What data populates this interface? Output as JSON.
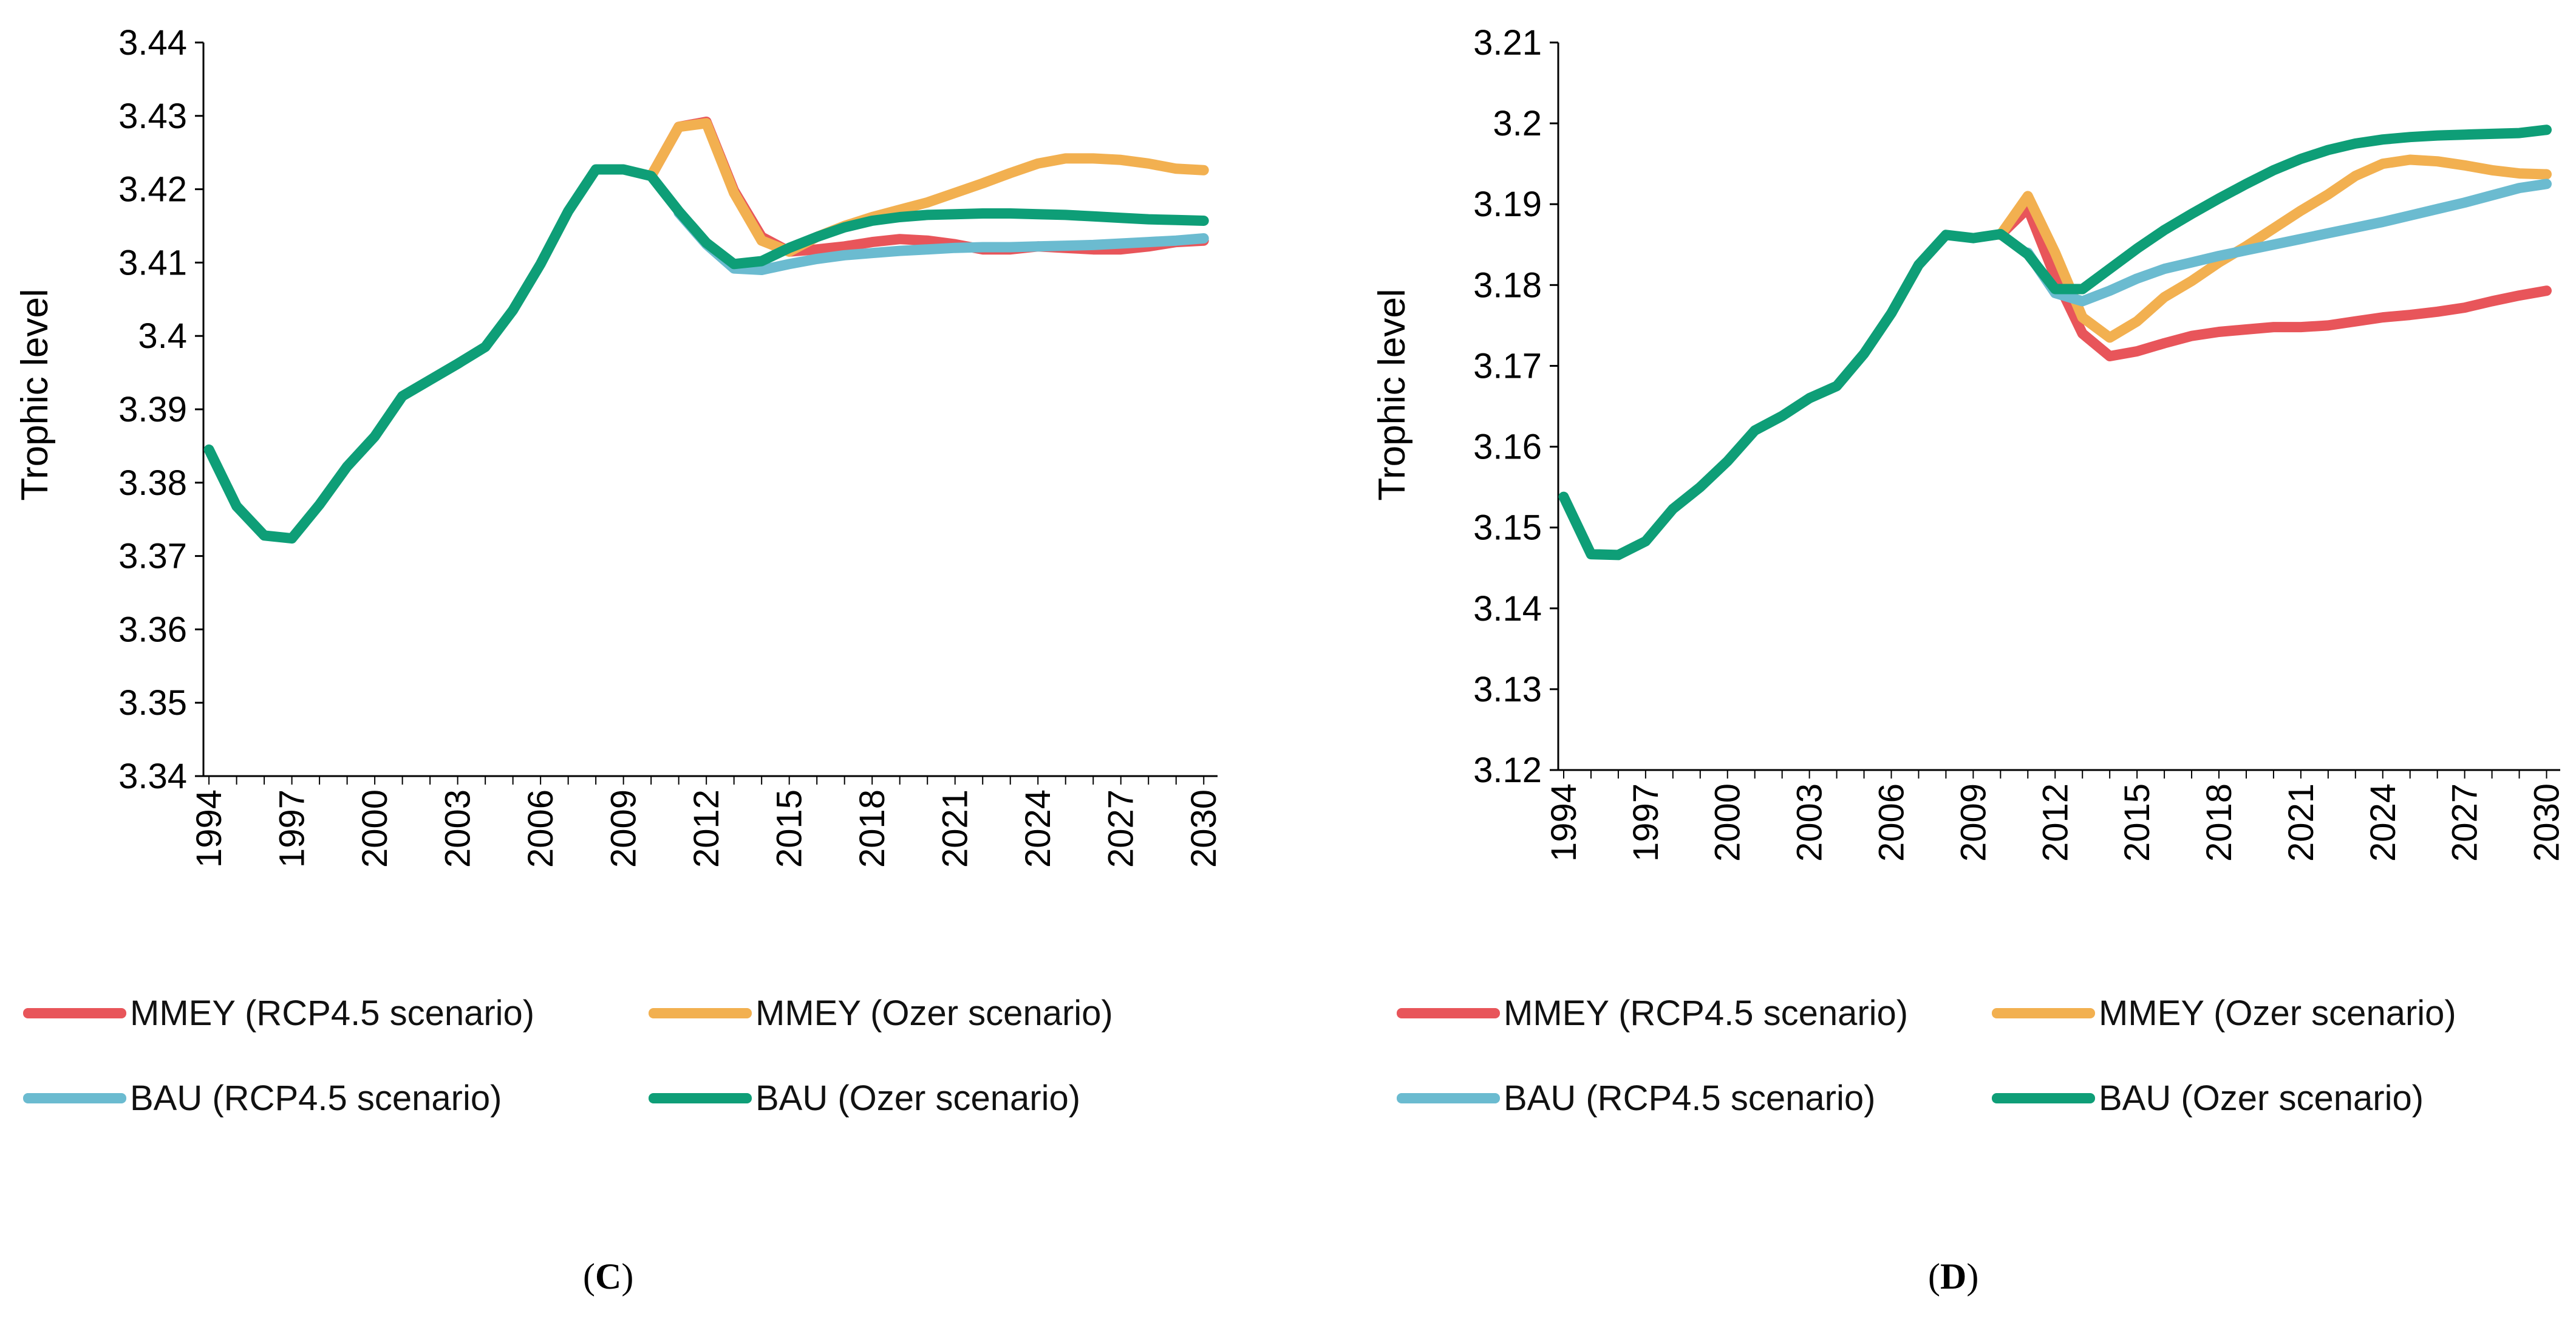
{
  "colors": {
    "mmey_rcp": "#E8555A",
    "mmey_ozer": "#F2B050",
    "bau_rcp": "#6BBBD0",
    "bau_ozer": "#0E9E77",
    "axis": "#000000"
  },
  "chart_data": [
    {
      "panel": "C",
      "type": "line",
      "title": "",
      "xlabel": "",
      "ylabel": "Trophic level",
      "ylim": [
        3.34,
        3.44
      ],
      "yticks": [
        "3.34",
        "3.35",
        "3.36",
        "3.37",
        "3.38",
        "3.39",
        "3.4",
        "3.41",
        "3.42",
        "3.43",
        "3.44"
      ],
      "xlim": [
        1993.8,
        2030.5
      ],
      "xticks": [
        "1994",
        "1997",
        "2000",
        "2003",
        "2006",
        "2009",
        "2012",
        "2015",
        "2018",
        "2021",
        "2024",
        "2027",
        "2030"
      ],
      "grid": false,
      "legend_position": "bottom",
      "series": [
        {
          "name": "MMEY (RCP4.5 scenario)",
          "color_key": "mmey_rcp",
          "x": [
            2010,
            2011,
            2012,
            2013,
            2014,
            2015,
            2016,
            2017,
            2018,
            2019,
            2020,
            2021,
            2022,
            2023,
            2024,
            2025,
            2026,
            2027,
            2028,
            2029,
            2030
          ],
          "values": [
            3.4218,
            3.4285,
            3.4292,
            3.4198,
            3.4135,
            3.4115,
            3.4118,
            3.4122,
            3.4128,
            3.4132,
            3.413,
            3.4125,
            3.4118,
            3.4118,
            3.4122,
            3.412,
            3.4118,
            3.4118,
            3.4122,
            3.4128,
            3.413
          ]
        },
        {
          "name": "MMEY (Ozer scenario)",
          "color_key": "mmey_ozer",
          "x": [
            2010,
            2011,
            2012,
            2013,
            2014,
            2015,
            2016,
            2017,
            2018,
            2019,
            2020,
            2021,
            2022,
            2023,
            2024,
            2025,
            2026,
            2027,
            2028,
            2029,
            2030
          ],
          "values": [
            3.4218,
            3.4285,
            3.429,
            3.4195,
            3.413,
            3.4115,
            3.4135,
            3.415,
            3.4162,
            3.4172,
            3.4182,
            3.4195,
            3.4208,
            3.4222,
            3.4235,
            3.4242,
            3.4242,
            3.424,
            3.4235,
            3.4228,
            3.4226
          ]
        },
        {
          "name": "BAU (RCP4.5 scenario)",
          "color_key": "bau_rcp",
          "x": [
            2011,
            2012,
            2013,
            2014,
            2015,
            2016,
            2017,
            2018,
            2019,
            2020,
            2021,
            2022,
            2023,
            2024,
            2025,
            2026,
            2027,
            2028,
            2029,
            2030
          ],
          "values": [
            3.4168,
            3.4125,
            3.4092,
            3.409,
            3.4098,
            3.4105,
            3.411,
            3.4113,
            3.4116,
            3.4118,
            3.412,
            3.4121,
            3.4121,
            3.4122,
            3.4123,
            3.4124,
            3.4126,
            3.4128,
            3.413,
            3.4133
          ]
        },
        {
          "name": "BAU (Ozer scenario)",
          "color_key": "bau_ozer",
          "x": [
            1994,
            1995,
            1996,
            1997,
            1998,
            1999,
            2000,
            2001,
            2002,
            2003,
            2004,
            2005,
            2006,
            2007,
            2008,
            2009,
            2010,
            2011,
            2012,
            2013,
            2014,
            2015,
            2016,
            2017,
            2018,
            2019,
            2020,
            2021,
            2022,
            2023,
            2024,
            2025,
            2026,
            2027,
            2028,
            2029,
            2030
          ],
          "values": [
            3.3845,
            3.3768,
            3.3728,
            3.3724,
            3.377,
            3.3822,
            3.3863,
            3.3918,
            3.394,
            3.3962,
            3.3985,
            3.4035,
            3.4098,
            3.417,
            3.4227,
            3.4227,
            3.4218,
            3.417,
            3.4127,
            3.4098,
            3.4102,
            3.412,
            3.4135,
            3.4148,
            3.4157,
            3.4162,
            3.4165,
            3.4166,
            3.4167,
            3.4167,
            3.4166,
            3.4165,
            3.4163,
            3.4161,
            3.4159,
            3.4158,
            3.4157
          ]
        }
      ],
      "caption": "(C)",
      "caption_letter": "C",
      "caption_open": "(",
      "caption_close": ")"
    },
    {
      "panel": "D",
      "type": "line",
      "title": "",
      "xlabel": "",
      "ylabel": "Trophic level",
      "ylim": [
        3.12,
        3.21
      ],
      "yticks": [
        "3.12",
        "3.13",
        "3.14",
        "3.15",
        "3.16",
        "3.17",
        "3.18",
        "3.19",
        "3.2",
        "3.21"
      ],
      "xlim": [
        1993.8,
        2030.5
      ],
      "xticks": [
        "1994",
        "1997",
        "2000",
        "2003",
        "2006",
        "2009",
        "2012",
        "2015",
        "2018",
        "2021",
        "2024",
        "2027",
        "2030"
      ],
      "grid": false,
      "legend_position": "bottom",
      "series": [
        {
          "name": "MMEY (RCP4.5 scenario)",
          "color_key": "mmey_rcp",
          "x": [
            2010,
            2011,
            2012,
            2013,
            2014,
            2015,
            2016,
            2017,
            2018,
            2019,
            2020,
            2021,
            2022,
            2023,
            2024,
            2025,
            2026,
            2027,
            2028,
            2029,
            2030
          ],
          "values": [
            3.1862,
            3.1895,
            3.181,
            3.174,
            3.1712,
            3.1718,
            3.1728,
            3.1737,
            3.1742,
            3.1745,
            3.1748,
            3.1748,
            3.175,
            3.1755,
            3.176,
            3.1763,
            3.1767,
            3.1772,
            3.178,
            3.1787,
            3.1793
          ]
        },
        {
          "name": "MMEY (Ozer scenario)",
          "color_key": "mmey_ozer",
          "x": [
            2010,
            2011,
            2012,
            2013,
            2014,
            2015,
            2016,
            2017,
            2018,
            2019,
            2020,
            2021,
            2022,
            2023,
            2024,
            2025,
            2026,
            2027,
            2028,
            2029,
            2030
          ],
          "values": [
            3.1862,
            3.191,
            3.184,
            3.176,
            3.1735,
            3.1755,
            3.1785,
            3.1805,
            3.1828,
            3.1848,
            3.187,
            3.1892,
            3.1912,
            3.1935,
            3.195,
            3.1955,
            3.1953,
            3.1948,
            3.1942,
            3.1938,
            3.1937
          ]
        },
        {
          "name": "BAU (RCP4.5 scenario)",
          "color_key": "bau_rcp",
          "x": [
            2011,
            2012,
            2013,
            2014,
            2015,
            2016,
            2017,
            2018,
            2019,
            2020,
            2021,
            2022,
            2023,
            2024,
            2025,
            2026,
            2027,
            2028,
            2029,
            2030
          ],
          "values": [
            3.184,
            3.179,
            3.178,
            3.1793,
            3.1808,
            3.182,
            3.1828,
            3.1836,
            3.1843,
            3.185,
            3.1857,
            3.1864,
            3.1871,
            3.1878,
            3.1886,
            3.1894,
            3.1902,
            3.1911,
            3.192,
            3.1925
          ]
        },
        {
          "name": "BAU (Ozer scenario)",
          "color_key": "bau_ozer",
          "x": [
            1994,
            1995,
            1996,
            1997,
            1998,
            1999,
            2000,
            2001,
            2002,
            2003,
            2004,
            2005,
            2006,
            2007,
            2008,
            2009,
            2010,
            2011,
            2012,
            2013,
            2014,
            2015,
            2016,
            2017,
            2018,
            2019,
            2020,
            2021,
            2022,
            2023,
            2024,
            2025,
            2026,
            2027,
            2028,
            2029,
            2030
          ],
          "values": [
            3.1538,
            3.1467,
            3.1466,
            3.1483,
            3.1523,
            3.155,
            3.1582,
            3.162,
            3.1638,
            3.166,
            3.1675,
            3.1715,
            3.1765,
            3.1825,
            3.1862,
            3.1858,
            3.1863,
            3.1838,
            3.1795,
            3.1795,
            3.182,
            3.1845,
            3.1868,
            3.1888,
            3.1907,
            3.1925,
            3.1942,
            3.1956,
            3.1967,
            3.1975,
            3.198,
            3.1983,
            3.1985,
            3.1986,
            3.1987,
            3.1988,
            3.1992
          ]
        }
      ],
      "caption": "(D)",
      "caption_letter": "D",
      "caption_open": "(",
      "caption_close": ")"
    }
  ]
}
